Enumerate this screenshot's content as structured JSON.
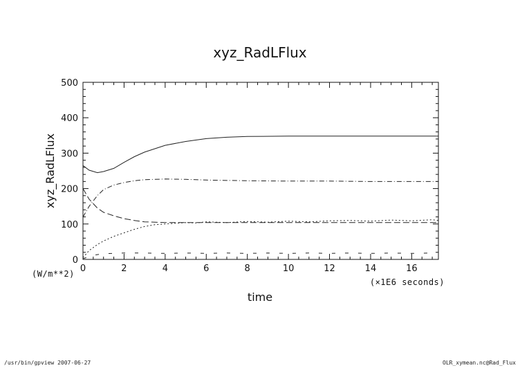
{
  "chart_data": {
    "type": "line",
    "title": "xyz_RadLFlux",
    "xlabel": "time",
    "ylabel": "xyz_RadLFlux",
    "x_unit": "(×1E6 seconds)",
    "y_unit": "(W/m**2)",
    "xlim": [
      0,
      17.3
    ],
    "ylim": [
      0,
      500
    ],
    "xticks": [
      0,
      2,
      4,
      6,
      8,
      10,
      12,
      14,
      16
    ],
    "yticks": [
      0,
      100,
      200,
      300,
      400,
      500
    ],
    "grid": false,
    "legend": "none",
    "series": [
      {
        "style": "solid",
        "x": [
          0,
          0.3,
          0.7,
          1.0,
          1.5,
          2.0,
          2.5,
          3.0,
          4.0,
          5.0,
          6.0,
          7.0,
          8.0,
          10.0,
          12.0,
          14.0,
          16.0,
          17.3
        ],
        "y": [
          265,
          252,
          245,
          248,
          257,
          274,
          290,
          303,
          322,
          333,
          341,
          345,
          347,
          348,
          348,
          348,
          348,
          348
        ]
      },
      {
        "style": "dash-dot",
        "x": [
          0,
          0.3,
          0.7,
          1.0,
          1.5,
          2.0,
          2.5,
          3.0,
          4.0,
          5.0,
          6.0,
          8.0,
          10.0,
          12.0,
          14.0,
          16.0,
          17.3
        ],
        "y": [
          120,
          150,
          180,
          197,
          210,
          217,
          222,
          225,
          227,
          226,
          224,
          222,
          221,
          221,
          220,
          220,
          220
        ]
      },
      {
        "style": "long-dash",
        "x": [
          0,
          0.3,
          0.7,
          1.0,
          1.5,
          2.0,
          2.5,
          3.0,
          4.0,
          5.0,
          6.0,
          8.0,
          10.0,
          12.0,
          14.0,
          16.0,
          17.3
        ],
        "y": [
          200,
          170,
          145,
          133,
          123,
          115,
          110,
          106,
          104,
          104,
          104,
          104,
          104,
          104,
          104,
          104,
          104
        ]
      },
      {
        "style": "dotted",
        "x": [
          0,
          0.3,
          0.7,
          1.0,
          1.5,
          2.0,
          2.5,
          3.0,
          3.5,
          4.0,
          4.5,
          5.0,
          5.5,
          6.0,
          7.0,
          8.0,
          9.0,
          10.0,
          11.0,
          12.0,
          13.0,
          14.0,
          15.0,
          16.0,
          17.0,
          17.3
        ],
        "y": [
          5,
          25,
          42,
          52,
          65,
          75,
          85,
          93,
          98,
          100,
          102,
          104,
          103,
          106,
          104,
          107,
          105,
          108,
          106,
          109,
          110,
          108,
          111,
          109,
          112,
          110
        ]
      },
      {
        "style": "sparse-dash",
        "x": [
          0,
          0.5,
          1.0,
          2.0,
          3.0,
          4.0,
          5.0,
          6.0,
          7.0,
          8.0,
          9.0,
          10.0,
          11.0,
          12.0,
          13.0,
          14.0,
          15.0,
          16.0,
          17.0
        ],
        "y": [
          2,
          12,
          16,
          18,
          18,
          17,
          18,
          17,
          18,
          17,
          18,
          17,
          18,
          17,
          18,
          17,
          18,
          17,
          18
        ]
      }
    ]
  },
  "footer": {
    "left": "/usr/bin/gpview   2007-06-27",
    "right": "OLR_xymean.nc@Rad_Flux"
  }
}
